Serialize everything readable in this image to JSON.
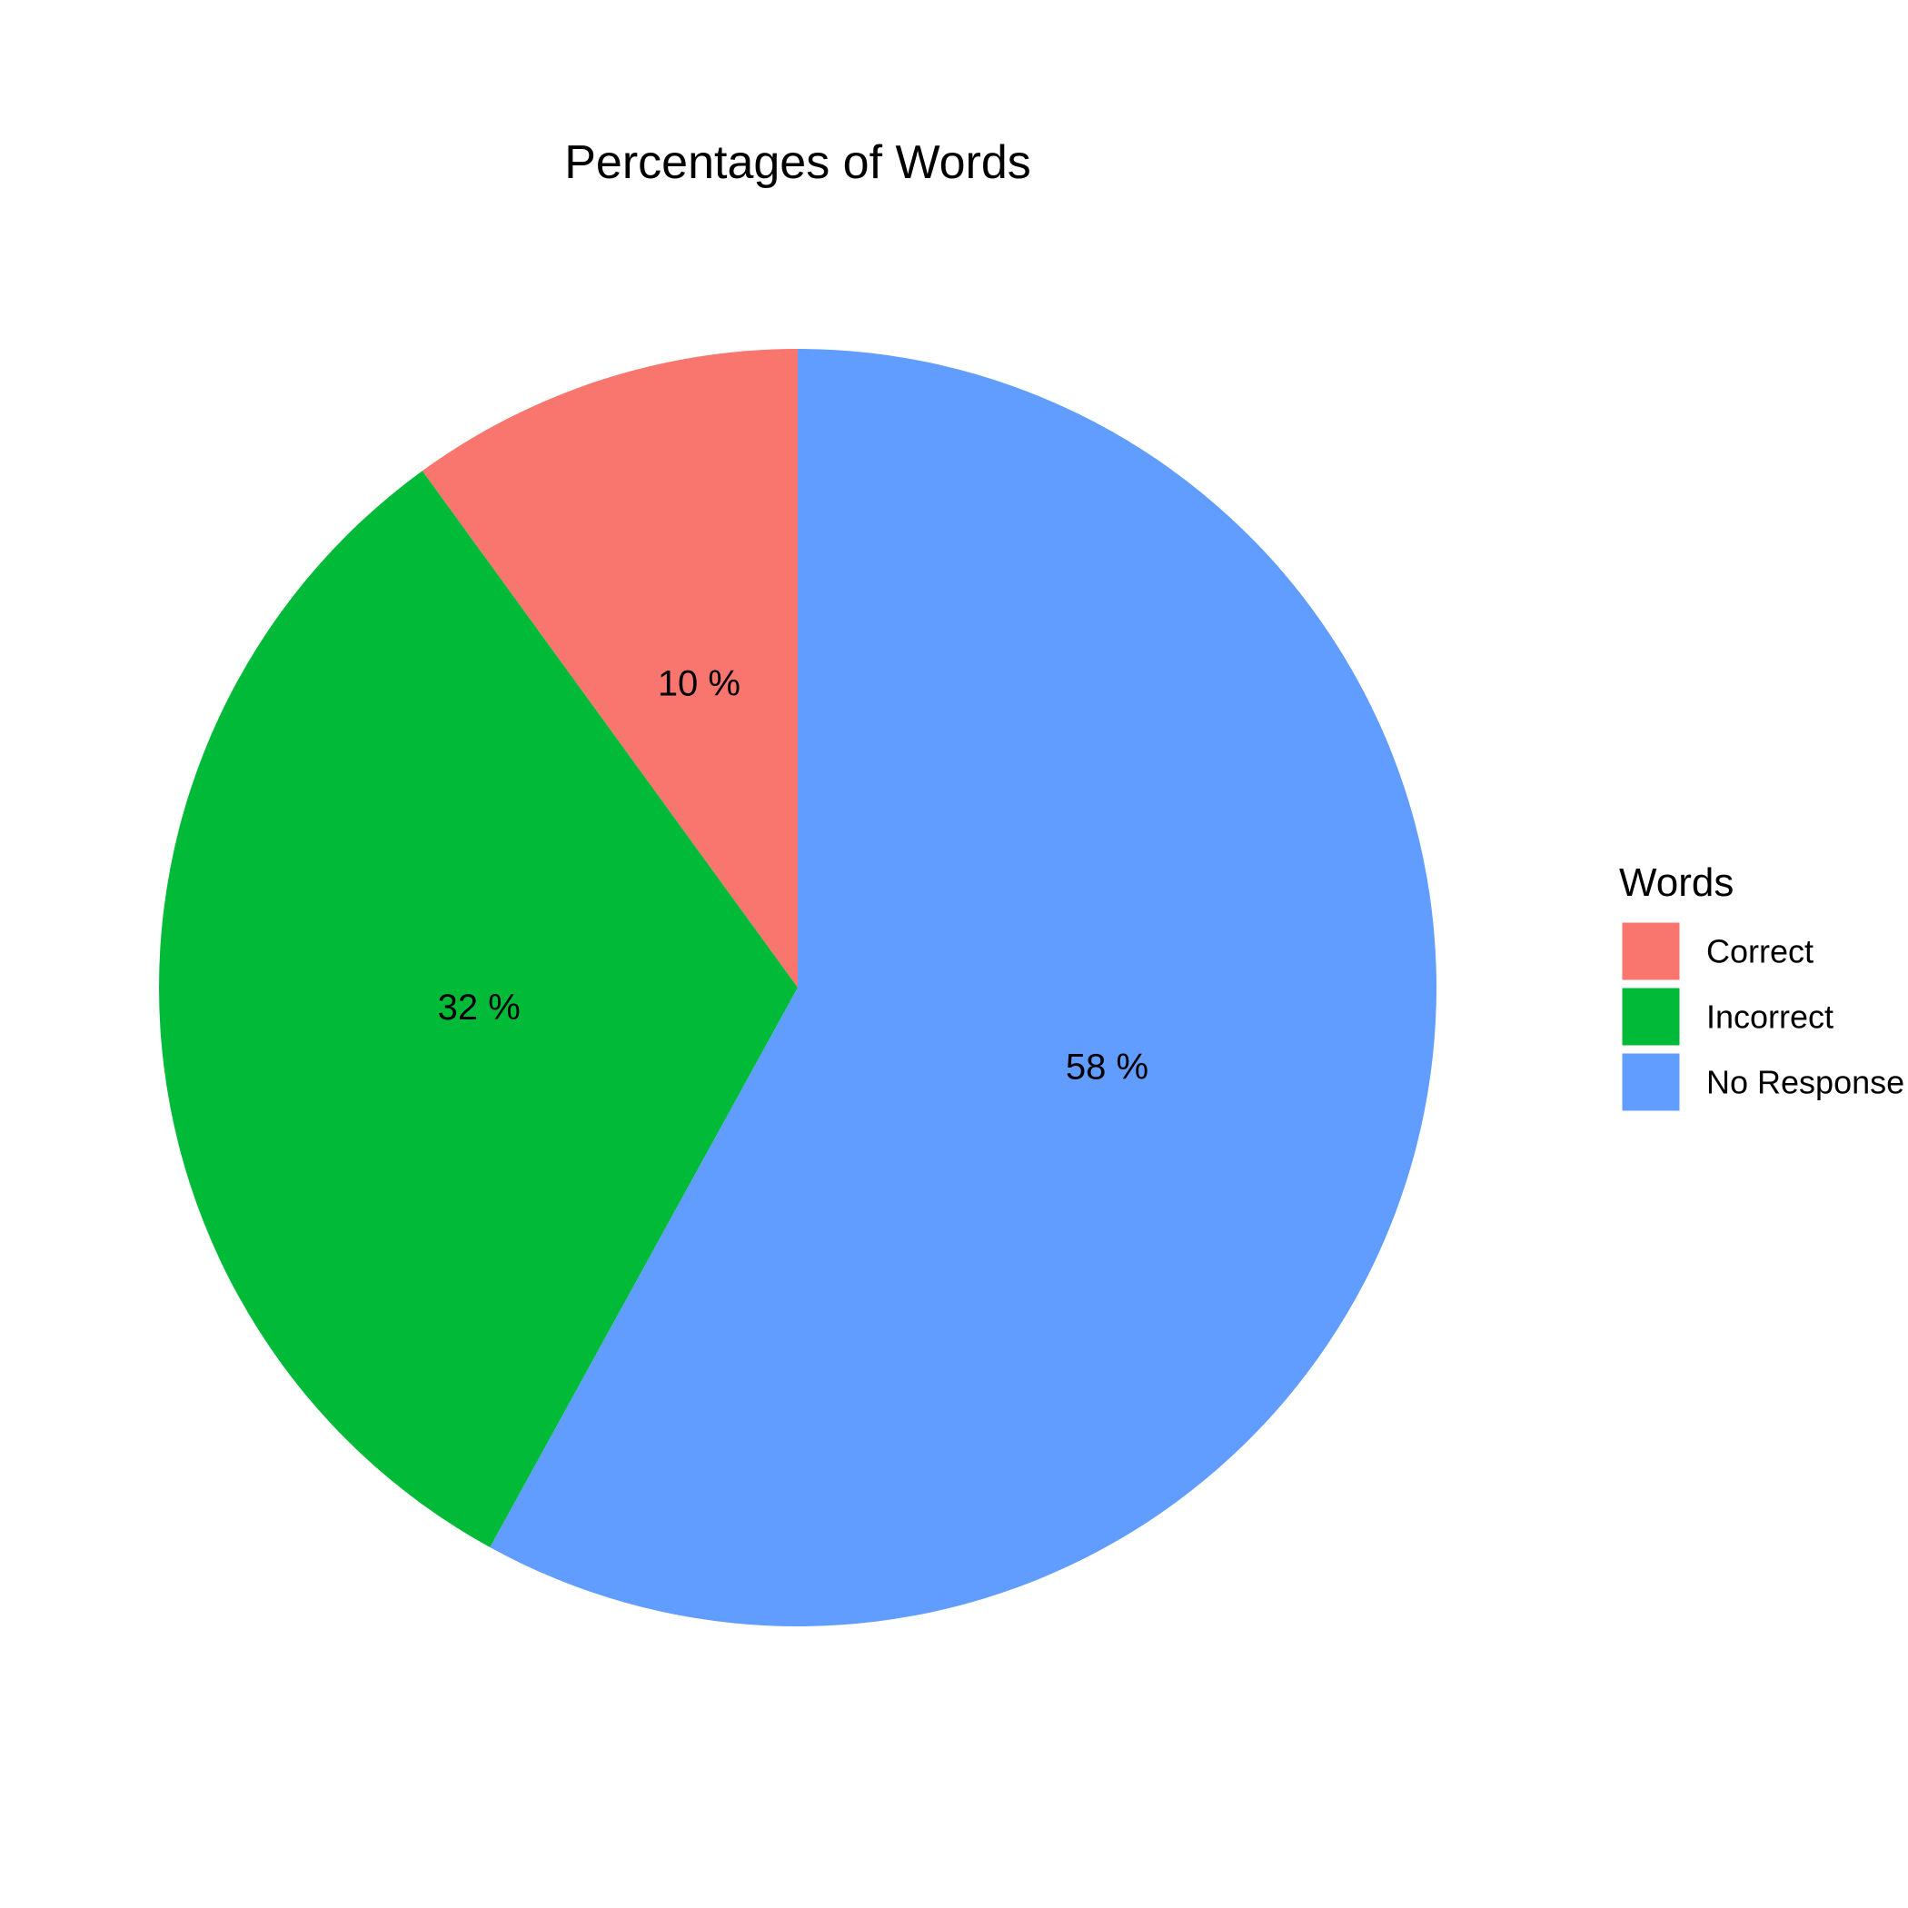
{
  "chart_data": {
    "type": "pie",
    "title": "Percentages of Words",
    "categories": [
      "Correct",
      "Incorrect",
      "No Response"
    ],
    "values": [
      10,
      32,
      58
    ],
    "labels": [
      "10 %",
      "32 %",
      "58 %"
    ],
    "colors": [
      "#F8766D",
      "#00BA38",
      "#619CFF"
    ],
    "direction": "counterclockwise",
    "start": "top",
    "legend": {
      "title": "Words",
      "placement": "right"
    }
  }
}
